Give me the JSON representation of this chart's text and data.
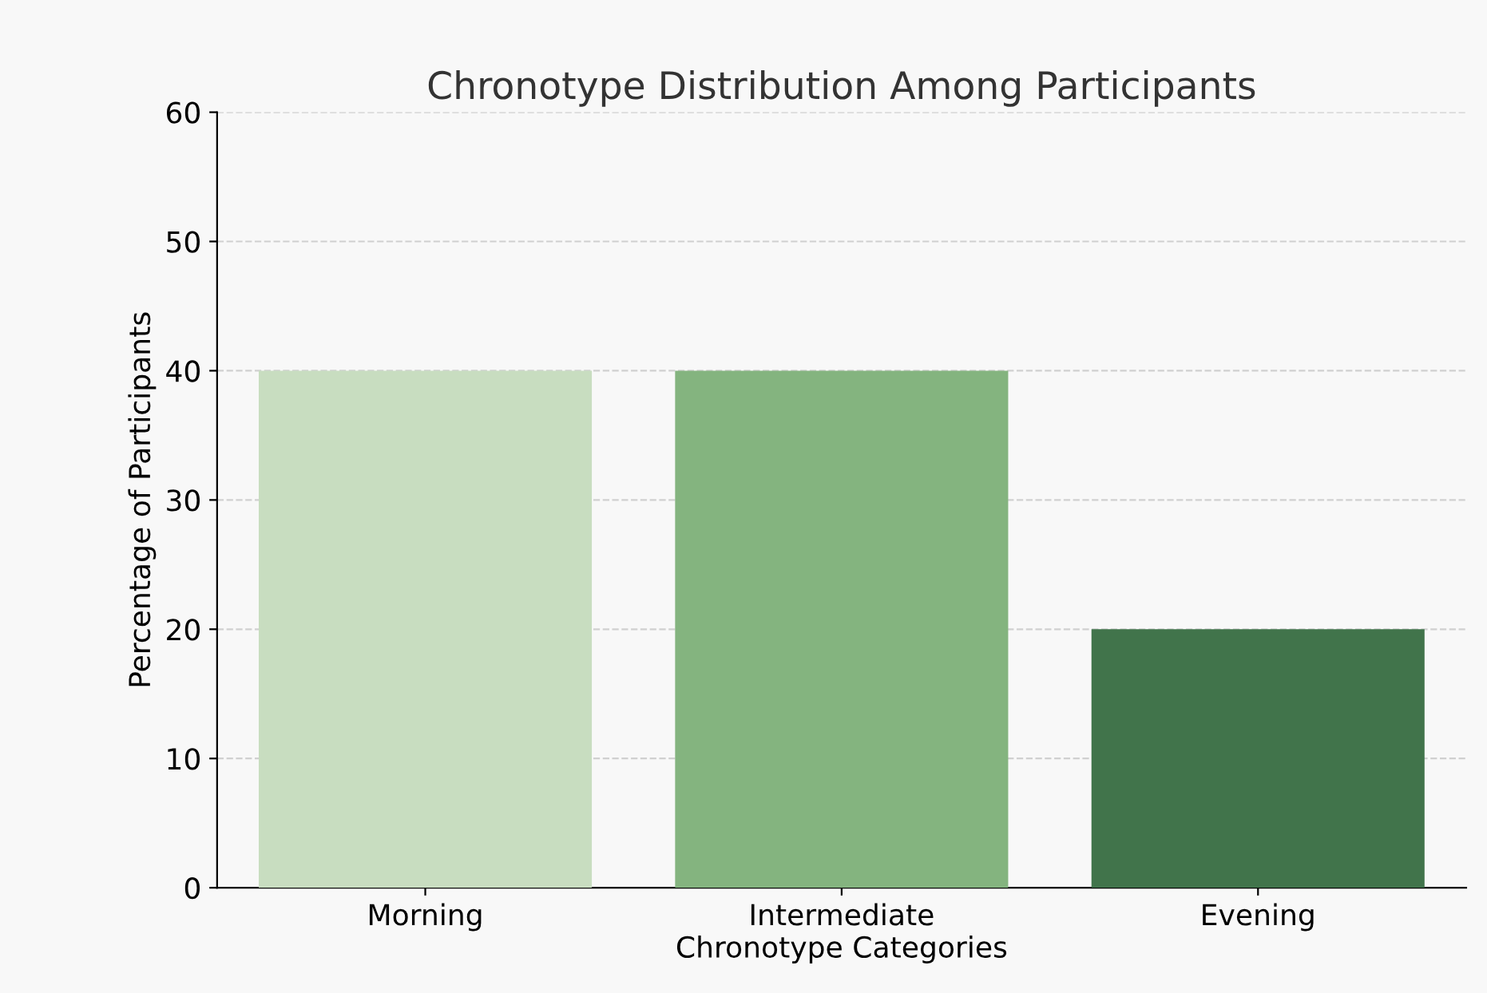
{
  "chart_data": {
    "type": "bar",
    "title": "Chronotype Distribution Among Participants",
    "xlabel": "Chronotype Categories",
    "ylabel": "Percentage of Participants",
    "categories": [
      "Morning",
      "Intermediate",
      "Evening"
    ],
    "values": [
      40,
      40,
      20
    ],
    "colors": [
      "#c8ddc0",
      "#84b47f",
      "#41744b"
    ],
    "ylim": [
      0,
      60
    ],
    "yticks": [
      0,
      10,
      20,
      30,
      40,
      50,
      60
    ],
    "grid": "y"
  }
}
